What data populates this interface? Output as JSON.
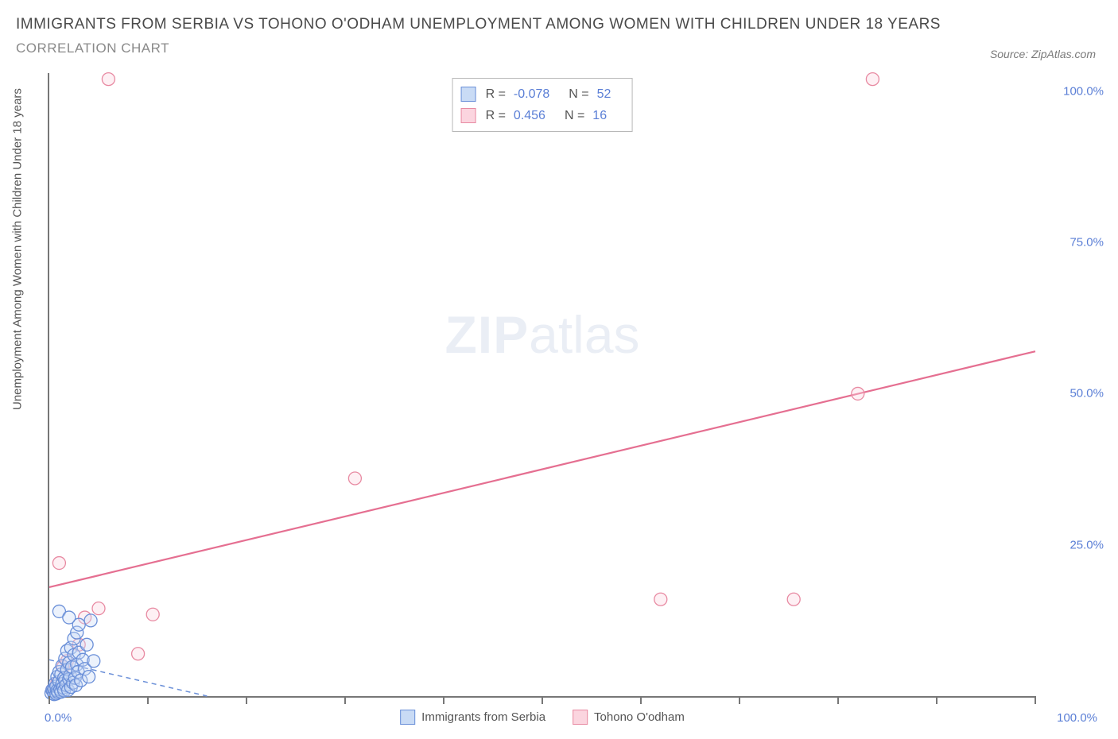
{
  "title": "IMMIGRANTS FROM SERBIA VS TOHONO O'ODHAM UNEMPLOYMENT AMONG WOMEN WITH CHILDREN UNDER 18 YEARS",
  "subtitle": "CORRELATION CHART",
  "source": "Source: ZipAtlas.com",
  "y_axis_label": "Unemployment Among Women with Children Under 18 years",
  "watermark_strong": "ZIP",
  "watermark_light": "atlas",
  "colors": {
    "series_a_fill": "#c9dbf5",
    "series_a_stroke": "#6a8fd8",
    "series_b_fill": "#fbd5df",
    "series_b_stroke": "#e88aa2",
    "axis": "#777777",
    "tick_text": "#5b7fd6",
    "trend_a": "#6a8fd8",
    "trend_b": "#e56f91"
  },
  "chart": {
    "type": "scatter",
    "xlim": [
      0,
      100
    ],
    "ylim": [
      0,
      103
    ],
    "x_ticks": [
      0,
      10,
      20,
      30,
      40,
      50,
      60,
      70,
      80,
      90,
      100
    ],
    "x_tick_labels_shown": {
      "0": "0.0%",
      "100": "100.0%"
    },
    "y_ticks": [
      25,
      50,
      75,
      100
    ],
    "y_tick_labels": {
      "25": "25.0%",
      "50": "50.0%",
      "75": "75.0%",
      "100": "100.0%"
    },
    "marker_radius": 8,
    "marker_fill_opacity": 0.35,
    "trend_line_width_a": 1.5,
    "trend_line_width_b": 2.2,
    "trend_a_dash": "6 5"
  },
  "stats": {
    "series_a": {
      "R_label": "R =",
      "R": "-0.078",
      "N_label": "N =",
      "N": "52"
    },
    "series_b": {
      "R_label": "R =",
      "R": "0.456",
      "N_label": "N =",
      "N": "16"
    }
  },
  "legend": {
    "a": "Immigrants from Serbia",
    "b": "Tohono O'odham"
  },
  "series_a_points": [
    [
      0.2,
      0.5
    ],
    [
      0.3,
      1.0
    ],
    [
      0.4,
      0.8
    ],
    [
      0.5,
      0.3
    ],
    [
      0.5,
      1.2
    ],
    [
      0.6,
      2.1
    ],
    [
      0.7,
      0.4
    ],
    [
      0.7,
      1.6
    ],
    [
      0.8,
      0.9
    ],
    [
      0.8,
      3.2
    ],
    [
      0.9,
      0.6
    ],
    [
      1.0,
      2.4
    ],
    [
      1.0,
      4.0
    ],
    [
      1.1,
      1.1
    ],
    [
      1.2,
      0.7
    ],
    [
      1.2,
      3.6
    ],
    [
      1.3,
      2.0
    ],
    [
      1.3,
      5.0
    ],
    [
      1.4,
      1.4
    ],
    [
      1.5,
      0.9
    ],
    [
      1.5,
      3.0
    ],
    [
      1.6,
      2.6
    ],
    [
      1.6,
      6.2
    ],
    [
      1.7,
      1.8
    ],
    [
      1.8,
      4.4
    ],
    [
      1.8,
      7.5
    ],
    [
      1.9,
      1.0
    ],
    [
      2.0,
      2.8
    ],
    [
      2.0,
      5.5
    ],
    [
      2.1,
      3.4
    ],
    [
      2.2,
      1.5
    ],
    [
      2.2,
      8.0
    ],
    [
      2.3,
      4.8
    ],
    [
      2.4,
      2.2
    ],
    [
      2.5,
      6.8
    ],
    [
      2.5,
      9.5
    ],
    [
      2.6,
      3.0
    ],
    [
      2.7,
      1.8
    ],
    [
      2.8,
      5.2
    ],
    [
      2.8,
      10.5
    ],
    [
      2.9,
      4.0
    ],
    [
      3.0,
      7.2
    ],
    [
      3.0,
      11.8
    ],
    [
      3.2,
      2.6
    ],
    [
      3.4,
      6.0
    ],
    [
      3.6,
      4.5
    ],
    [
      3.8,
      8.5
    ],
    [
      4.0,
      3.2
    ],
    [
      4.2,
      12.5
    ],
    [
      4.5,
      5.8
    ],
    [
      1.0,
      14.0
    ],
    [
      2.0,
      13.0
    ]
  ],
  "series_b_points": [
    [
      0.3,
      1.0
    ],
    [
      0.8,
      2.2
    ],
    [
      1.4,
      4.8
    ],
    [
      1.8,
      5.8
    ],
    [
      3.0,
      8.5
    ],
    [
      3.6,
      13.0
    ],
    [
      5.0,
      14.5
    ],
    [
      9.0,
      7.0
    ],
    [
      10.5,
      13.5
    ],
    [
      6.0,
      102.0
    ],
    [
      31.0,
      36.0
    ],
    [
      62.0,
      16.0
    ],
    [
      75.5,
      16.0
    ],
    [
      82.0,
      50.0
    ],
    [
      83.5,
      102.0
    ],
    [
      1.0,
      22.0
    ]
  ],
  "trend_lines": {
    "a": {
      "x1": 0,
      "y1": 6.0,
      "x2": 16,
      "y2": 0
    },
    "b": {
      "x1": 0,
      "y1": 18.0,
      "x2": 100,
      "y2": 57.0
    }
  }
}
